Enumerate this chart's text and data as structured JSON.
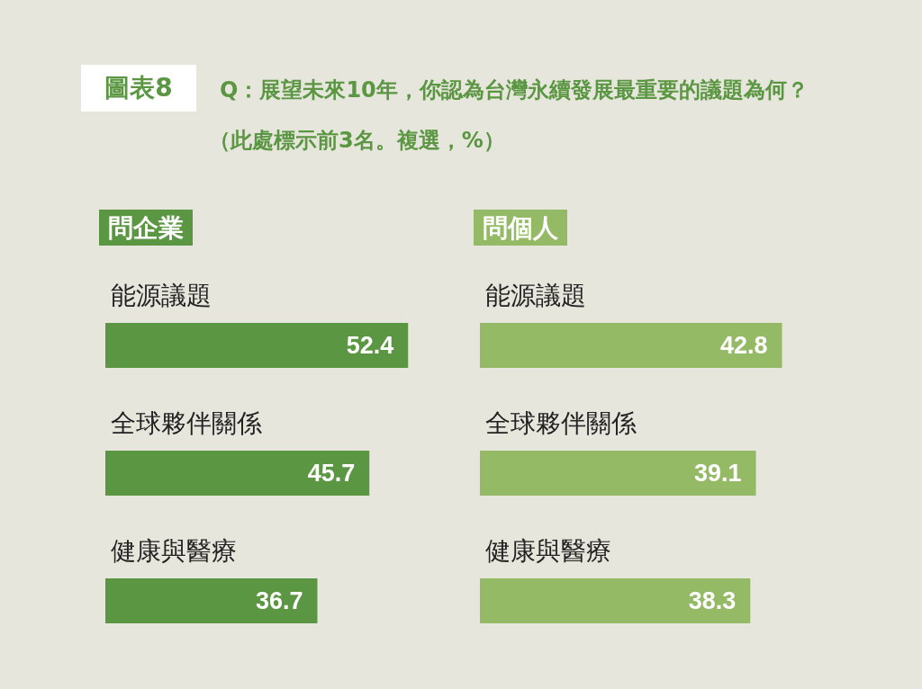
{
  "chart_data": [
    {
      "type": "bar",
      "orientation": "horizontal",
      "title": "問企業",
      "annotations": [
        "圖表8",
        "Q：展望未來10年，你認為台灣永續發展最重要的議題為何？（此處標示前3名。複選，%）"
      ],
      "categories": [
        "能源議題",
        "全球夥伴關係",
        "健康與醫療"
      ],
      "values": [
        52.4,
        45.7,
        36.7
      ],
      "color": "#5b9642",
      "data_labels": true,
      "grid": false,
      "tick_labels": "y"
    },
    {
      "type": "bar",
      "orientation": "horizontal",
      "title": "問個人",
      "categories": [
        "能源議題",
        "全球夥伴關係",
        "健康與醫療"
      ],
      "values": [
        42.8,
        39.1,
        38.3
      ],
      "color": "#95ba66",
      "data_labels": true,
      "grid": false,
      "tick_labels": "y"
    }
  ]
}
